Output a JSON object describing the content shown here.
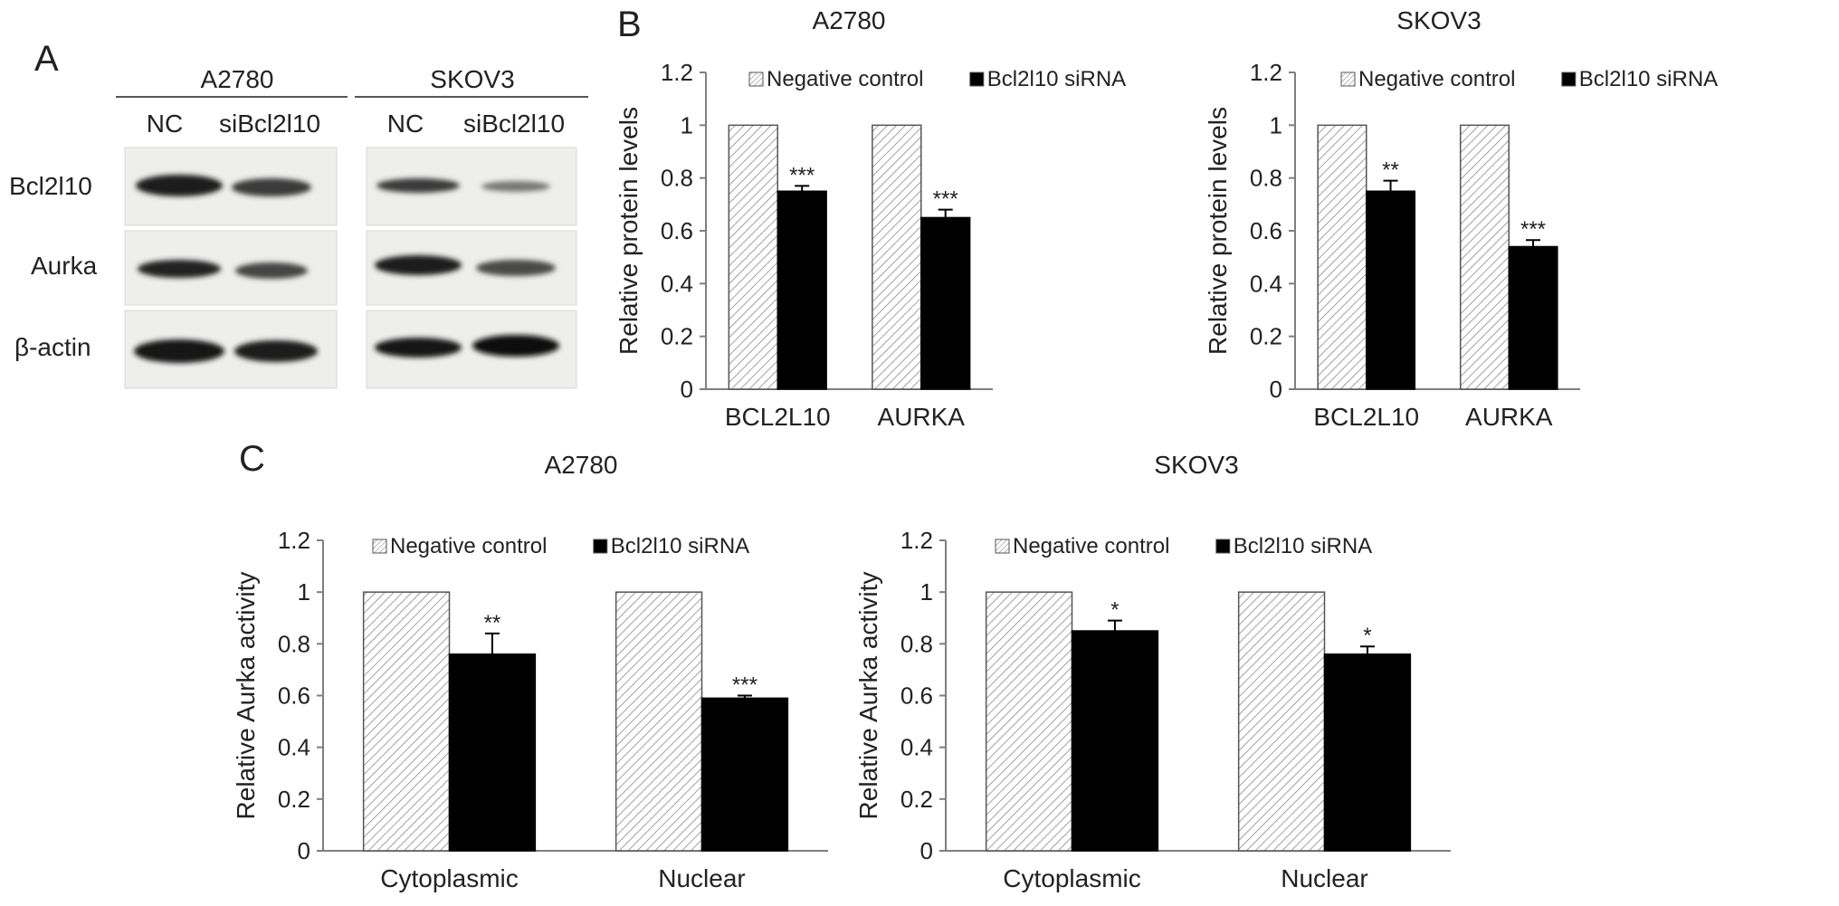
{
  "panel_letters": {
    "a": "A",
    "b": "B",
    "c": "C"
  },
  "western_blot": {
    "cell_lines": [
      "A2780",
      "SKOV3"
    ],
    "lane_labels": [
      "NC",
      "siBcl2l10"
    ],
    "proteins": [
      "Bcl2l10",
      "Aurka",
      "β-actin"
    ]
  },
  "colors": {
    "negative_control": "#ffffff",
    "bcl2l10_sirna": "#000000",
    "hatch": "#7f7f7f",
    "axis": "#7f7f7f"
  },
  "chart_data": [
    {
      "type": "bar",
      "panel": "B",
      "title": "A2780",
      "categories": [
        "BCL2L10",
        "AURKA"
      ],
      "ylabel": "Relative protein levels",
      "ylim": [
        0,
        1.2
      ],
      "yticks": [
        "0",
        "0.2",
        "0.4",
        "0.6",
        "0.8",
        "1",
        "1.2"
      ],
      "series": [
        {
          "name": "Negative control",
          "values": [
            1,
            1
          ],
          "pattern": "hatched"
        },
        {
          "name": "Bcl2l10 siRNA",
          "values": [
            0.75,
            0.65
          ],
          "errors": [
            0.02,
            0.03
          ],
          "pattern": "solid"
        }
      ],
      "significance": [
        "***",
        "***"
      ],
      "legend": "top"
    },
    {
      "type": "bar",
      "panel": "B",
      "title": "SKOV3",
      "categories": [
        "BCL2L10",
        "AURKA"
      ],
      "ylabel": "Relative protein levels",
      "ylim": [
        0,
        1.2
      ],
      "yticks": [
        "0",
        "0.2",
        "0.4",
        "0.6",
        "0.8",
        "1",
        "1.2"
      ],
      "series": [
        {
          "name": "Negative control",
          "values": [
            1,
            1
          ],
          "pattern": "hatched"
        },
        {
          "name": "Bcl2l10 siRNA",
          "values": [
            0.75,
            0.54
          ],
          "errors": [
            0.04,
            0.025
          ],
          "pattern": "solid"
        }
      ],
      "significance": [
        "**",
        "***"
      ],
      "legend": "top"
    },
    {
      "type": "bar",
      "panel": "C",
      "title": "A2780",
      "categories": [
        "Cytoplasmic",
        "Nuclear"
      ],
      "ylabel": "Relative Aurka activity",
      "ylim": [
        0,
        1.2
      ],
      "yticks": [
        "0",
        "0.2",
        "0.4",
        "0.6",
        "0.8",
        "1",
        "1.2"
      ],
      "series": [
        {
          "name": "Negative control",
          "values": [
            1,
            1
          ],
          "pattern": "hatched"
        },
        {
          "name": "Bcl2l10 siRNA",
          "values": [
            0.76,
            0.59
          ],
          "errors": [
            0.08,
            0.01
          ],
          "pattern": "solid"
        }
      ],
      "significance": [
        "**",
        "***"
      ],
      "legend": "top"
    },
    {
      "type": "bar",
      "panel": "C",
      "title": "SKOV3",
      "categories": [
        "Cytoplasmic",
        "Nuclear"
      ],
      "ylabel": "Relative Aurka activity",
      "ylim": [
        0,
        1.2
      ],
      "yticks": [
        "0",
        "0.2",
        "0.4",
        "0.6",
        "0.8",
        "1",
        "1.2"
      ],
      "series": [
        {
          "name": "Negative control",
          "values": [
            1,
            1
          ],
          "pattern": "hatched"
        },
        {
          "name": "Bcl2l10 siRNA",
          "values": [
            0.85,
            0.76
          ],
          "errors": [
            0.04,
            0.03
          ],
          "pattern": "solid"
        }
      ],
      "significance": [
        "*",
        "*"
      ],
      "legend": "top"
    }
  ]
}
